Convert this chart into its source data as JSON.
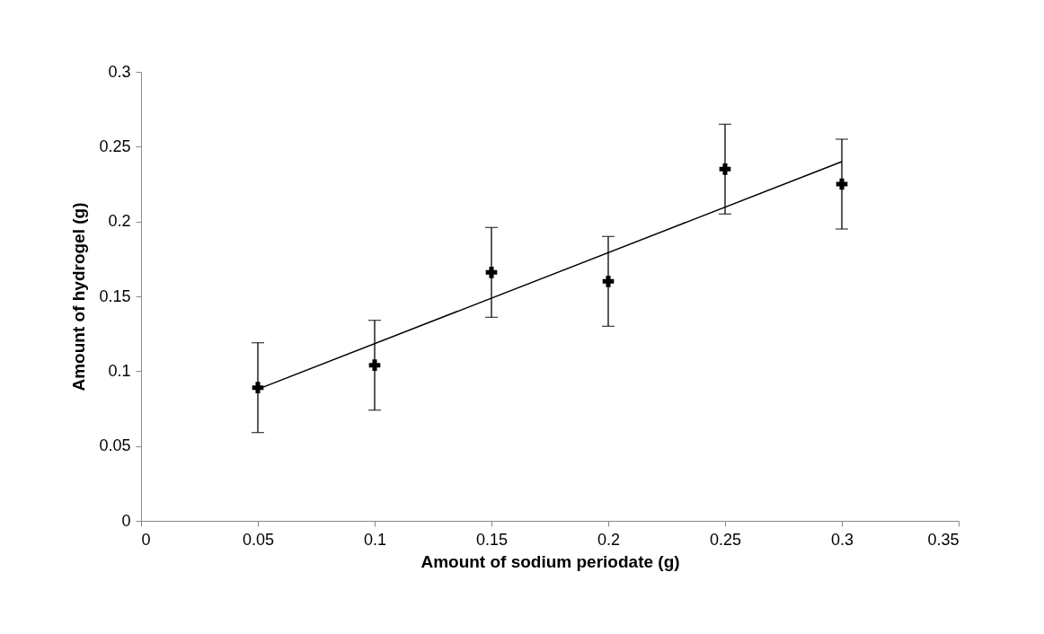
{
  "chart_data": {
    "type": "scatter",
    "xlabel": "Amount of sodium periodate (g)",
    "ylabel": "Amount of hydrogel (g)",
    "x": [
      0.05,
      0.1,
      0.15,
      0.2,
      0.25,
      0.3
    ],
    "series": [
      {
        "color": "#000000",
        "marker": "cross",
        "values": [
          0.089,
          0.104,
          0.166,
          0.16,
          0.235,
          0.225
        ],
        "errors": [
          0.03,
          0.03,
          0.03,
          0.03,
          0.03,
          0.03
        ]
      },
      {
        "type": "line",
        "color": "#000000",
        "x": [
          0.05,
          0.3
        ],
        "values": [
          0.088,
          0.24
        ]
      }
    ],
    "xlim": [
      0,
      0.35
    ],
    "xticks": [
      0,
      0.05,
      0.1,
      0.15,
      0.2,
      0.25,
      0.3,
      0.35
    ],
    "ylim": [
      0,
      0.3
    ],
    "yticks": [
      0,
      0.05,
      0.1,
      0.15,
      0.2,
      0.25,
      0.3
    ],
    "grid": false
  }
}
